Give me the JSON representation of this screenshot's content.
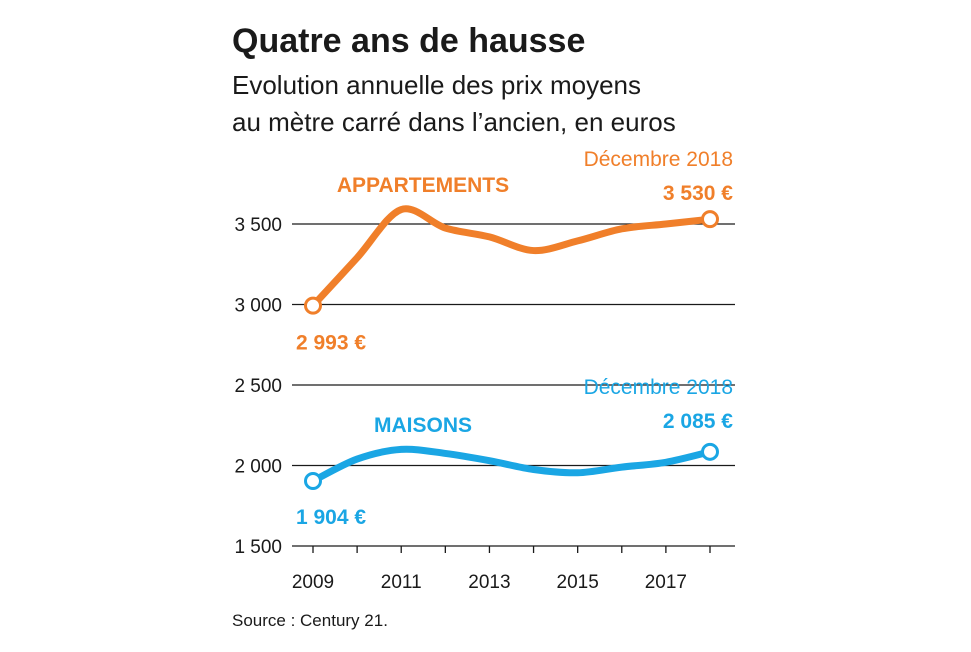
{
  "chart_data": {
    "type": "line",
    "title": "Quatre ans de hausse",
    "subtitle_line1": "Evolution annuelle des prix moyens",
    "subtitle_line2": "au mètre carré dans l’ancien, en euros",
    "x": [
      2009,
      2010,
      2011,
      2012,
      2013,
      2014,
      2015,
      2016,
      2017,
      2018
    ],
    "x_tick_labels": [
      "2009",
      "2011",
      "2013",
      "2015",
      "2017"
    ],
    "x_tick_values": [
      2009,
      2011,
      2013,
      2015,
      2017
    ],
    "y_tick_labels": [
      "3 500",
      "3 000",
      "2 500",
      "2 000",
      "1 500"
    ],
    "y_tick_values": [
      3500,
      3000,
      2500,
      2000,
      1500
    ],
    "ylim": [
      1500,
      3700
    ],
    "xlim": [
      2009,
      2018
    ],
    "grid": true,
    "series": [
      {
        "name": "APPARTEMENTS",
        "color": "#f07f2a",
        "values": [
          2993,
          3290,
          3590,
          3475,
          3420,
          3335,
          3395,
          3470,
          3500,
          3530
        ],
        "start_label": "2 993 €",
        "end_label_date": "Décembre 2018",
        "end_label_value": "3 530 €"
      },
      {
        "name": "MAISONS",
        "color": "#1aa6e4",
        "values": [
          1904,
          2040,
          2100,
          2075,
          2030,
          1975,
          1955,
          1990,
          2020,
          2085
        ],
        "start_label": "1 904 €",
        "end_label_date": "Décembre 2018",
        "end_label_value": "2 085 €"
      }
    ],
    "source": "Source : Century 21."
  }
}
